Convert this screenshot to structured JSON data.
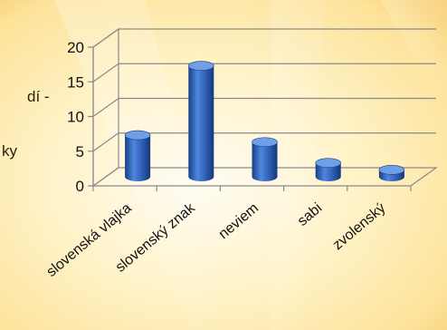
{
  "slide_text": {
    "fragment_1": "dí -",
    "fragment_2": "ky"
  },
  "chart_data": {
    "type": "bar",
    "style": "3d-cylinder",
    "title": "",
    "xlabel": "",
    "ylabel": "",
    "categories": [
      "slovenská vlajka",
      "slovenský znak",
      "neviem",
      "sabi",
      "zvolenský"
    ],
    "values": [
      6,
      16,
      5,
      2,
      1
    ],
    "ylim": [
      0,
      20
    ],
    "yticks": [
      0,
      5,
      10,
      15,
      20
    ],
    "grid": true,
    "legend": "none",
    "colors": {
      "bar": "#2f63b8",
      "bar_dark": "#173f86",
      "bar_light": "#6f9fe6",
      "gridline": "#8a8a8a",
      "background": "#fff1c2"
    }
  }
}
